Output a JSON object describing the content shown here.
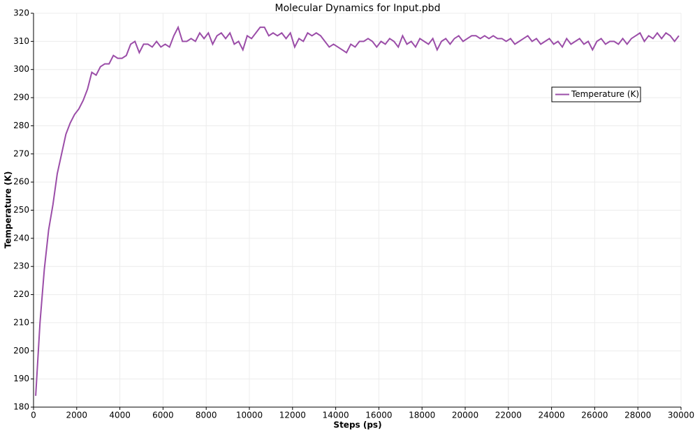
{
  "chart_data": {
    "type": "line",
    "title": "Molecular Dynamics for Input.pbd",
    "x_label": "Steps (ps)",
    "y_label": "Temperature (K)",
    "xlim": [
      0,
      30000
    ],
    "xticks": [
      0,
      2000,
      4000,
      6000,
      8000,
      10000,
      12000,
      14000,
      16000,
      18000,
      20000,
      22000,
      24000,
      26000,
      28000,
      30000
    ],
    "ylim": [
      180,
      320
    ],
    "yticks": [
      180,
      190,
      200,
      210,
      220,
      230,
      240,
      250,
      260,
      270,
      280,
      290,
      300,
      310,
      320
    ],
    "grid": true,
    "legend": "upper right",
    "x": [
      100,
      300,
      500,
      700,
      900,
      1100,
      1300,
      1500,
      1700,
      1900,
      2100,
      2300,
      2500,
      2700,
      2900,
      3100,
      3300,
      3500,
      3700,
      3900,
      4100,
      4300,
      4500,
      4700,
      4900,
      5100,
      5300,
      5500,
      5700,
      5900,
      6100,
      6300,
      6500,
      6700,
      6900,
      7100,
      7300,
      7500,
      7700,
      7900,
      8100,
      8300,
      8500,
      8700,
      8900,
      9100,
      9300,
      9500,
      9700,
      9900,
      10100,
      10300,
      10500,
      10700,
      10900,
      11100,
      11300,
      11500,
      11700,
      11900,
      12100,
      12300,
      12500,
      12700,
      12900,
      13100,
      13300,
      13500,
      13700,
      13900,
      14100,
      14300,
      14500,
      14700,
      14900,
      15100,
      15300,
      15500,
      15700,
      15900,
      16100,
      16300,
      16500,
      16700,
      16900,
      17100,
      17300,
      17500,
      17700,
      17900,
      18100,
      18300,
      18500,
      18700,
      18900,
      19100,
      19300,
      19500,
      19700,
      19900,
      20100,
      20300,
      20500,
      20700,
      20900,
      21100,
      21300,
      21500,
      21700,
      21900,
      22100,
      22300,
      22500,
      22700,
      22900,
      23100,
      23300,
      23500,
      23700,
      23900,
      24100,
      24300,
      24500,
      24700,
      24900,
      25100,
      25300,
      25500,
      25700,
      25900,
      26100,
      26300,
      26500,
      26700,
      26900,
      27100,
      27300,
      27500,
      27700,
      27900,
      28100,
      28300,
      28500,
      28700,
      28900,
      29100,
      29300,
      29500,
      29700,
      29900
    ],
    "series": [
      {
        "name": "Temperature (K)",
        "color": "#9b4da8",
        "values": [
          184,
          210,
          229,
          243,
          252,
          263,
          270,
          277,
          281,
          284,
          286,
          289,
          293,
          299,
          298,
          301,
          302,
          302,
          305,
          304,
          304,
          305,
          309,
          310,
          306,
          309,
          309,
          308,
          310,
          308,
          309,
          308,
          312,
          315,
          310,
          310,
          311,
          310,
          313,
          311,
          313,
          309,
          312,
          313,
          311,
          313,
          309,
          310,
          307,
          312,
          311,
          313,
          315,
          315,
          312,
          313,
          312,
          313,
          311,
          313,
          308,
          311,
          310,
          313,
          312,
          313,
          312,
          310,
          308,
          309,
          308,
          307,
          306,
          309,
          308,
          310,
          310,
          311,
          310,
          308,
          310,
          309,
          311,
          310,
          308,
          312,
          309,
          310,
          308,
          311,
          310,
          309,
          311,
          307,
          310,
          311,
          309,
          311,
          312,
          310,
          311,
          312,
          312,
          311,
          312,
          311,
          312,
          311,
          311,
          310,
          311,
          309,
          310,
          311,
          312,
          310,
          311,
          309,
          310,
          311,
          309,
          310,
          308,
          311,
          309,
          310,
          311,
          309,
          310,
          307,
          310,
          311,
          309,
          310,
          310,
          309,
          311,
          309,
          311,
          312,
          313,
          310,
          312,
          311,
          313,
          311,
          313,
          312,
          310,
          312
        ]
      }
    ]
  }
}
